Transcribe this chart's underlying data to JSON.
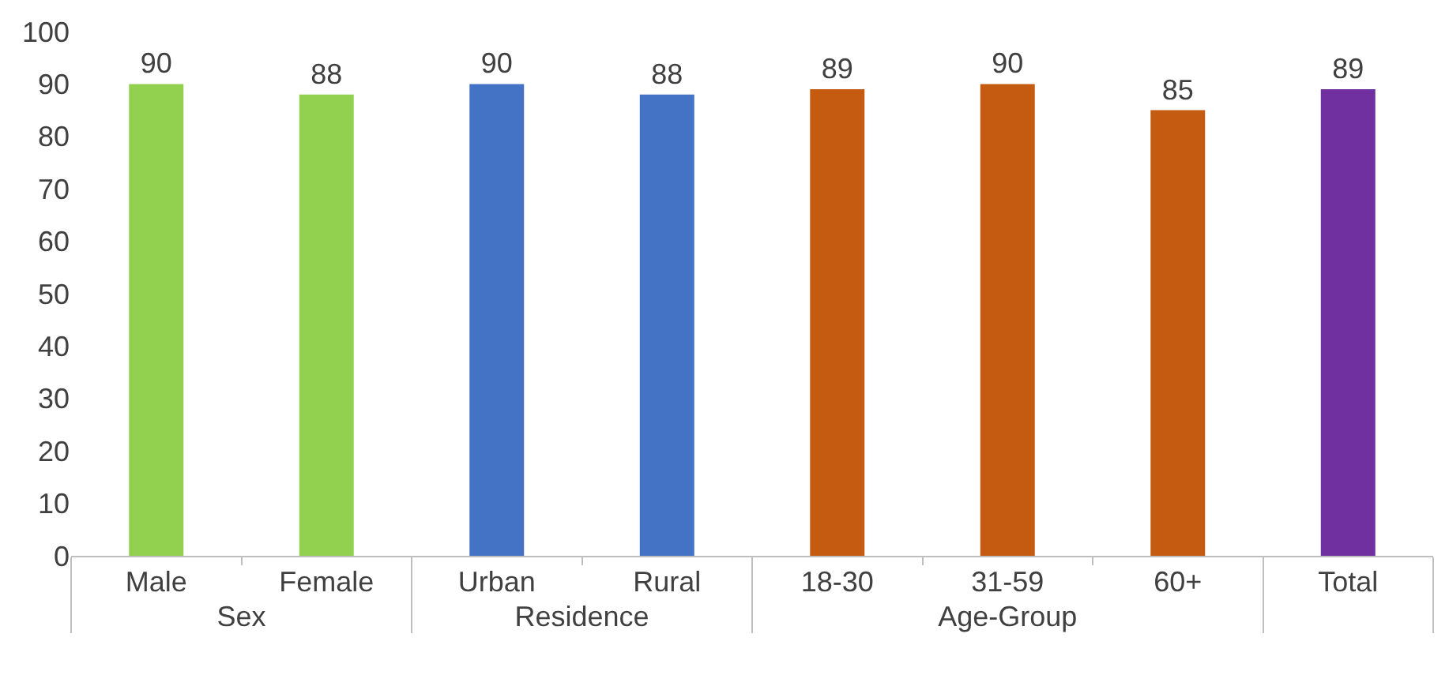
{
  "chart_data": {
    "type": "bar",
    "categories": [
      "Male",
      "Female",
      "Urban",
      "Rural",
      "18-30",
      "31-59",
      "60+",
      "Total"
    ],
    "values": [
      90,
      88,
      90,
      88,
      89,
      90,
      85,
      89
    ],
    "colors": [
      "#92d050",
      "#92d050",
      "#4472c4",
      "#4472c4",
      "#c55a11",
      "#c55a11",
      "#c55a11",
      "#7030a0"
    ],
    "annotations": [
      "Sex",
      "Residence",
      "Age-Group"
    ],
    "ylim": [
      0,
      100
    ],
    "yticks": [
      0,
      10,
      20,
      30,
      40,
      50,
      60,
      70,
      80,
      90,
      100
    ],
    "data_labels": true
  }
}
